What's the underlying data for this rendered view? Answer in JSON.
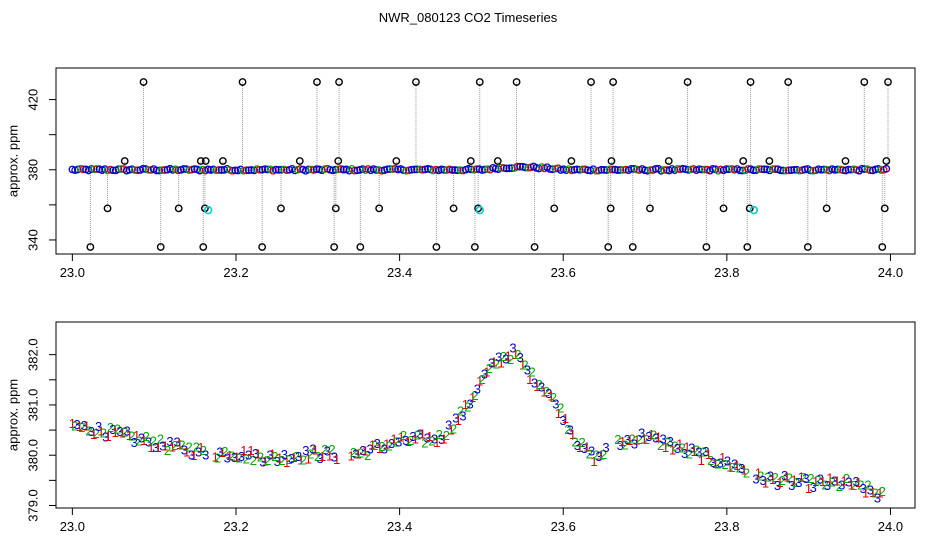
{
  "title": "NWR_080123  CO2 Timeseries",
  "chart_data": [
    {
      "type": "scatter",
      "ylabel": "approx. ppm",
      "xlim": [
        22.98,
        24.03
      ],
      "ylim": [
        332,
        438
      ],
      "xticks": [
        "23.0",
        "23.2",
        "23.4",
        "23.6",
        "23.8",
        "24.0"
      ],
      "xtick_values": [
        23.0,
        23.2,
        23.4,
        23.6,
        23.8,
        24.0
      ],
      "yticks": [
        "340",
        "380",
        "420"
      ],
      "ytick_values": [
        340,
        380,
        420
      ],
      "minor_yticks": [
        360,
        400
      ],
      "baseline_points": 300,
      "outlier_times": [
        23.022,
        23.043,
        23.064,
        23.087,
        23.108,
        23.13,
        23.157,
        23.16,
        23.162,
        23.163,
        23.184,
        23.208,
        23.232,
        23.255,
        23.278,
        23.299,
        23.32,
        23.322,
        23.325,
        23.326,
        23.352,
        23.375,
        23.396,
        23.42,
        23.445,
        23.466,
        23.487,
        23.492,
        23.496,
        23.498,
        23.52,
        23.543,
        23.565,
        23.589,
        23.61,
        23.634,
        23.655,
        23.658,
        23.659,
        23.661,
        23.685,
        23.706,
        23.729,
        23.752,
        23.775,
        23.796,
        23.82,
        23.825,
        23.828,
        23.829,
        23.852,
        23.875,
        23.899,
        23.922,
        23.945,
        23.968,
        23.99,
        23.993,
        23.995,
        23.997
      ],
      "outlier_values": [
        336,
        358,
        385,
        430,
        336,
        358,
        385,
        336,
        358,
        385,
        385,
        430,
        336,
        358,
        385,
        430,
        336,
        358,
        385,
        430,
        336,
        358,
        385,
        430,
        336,
        358,
        385,
        336,
        358,
        430,
        385,
        430,
        336,
        358,
        385,
        430,
        336,
        358,
        385,
        430,
        336,
        358,
        385,
        430,
        336,
        358,
        385,
        336,
        358,
        430,
        385,
        430,
        336,
        358,
        385,
        430,
        336,
        358,
        385,
        430
      ],
      "cyan_times": [
        23.166,
        23.498,
        23.833
      ],
      "cyan_values": [
        357,
        357,
        357
      ]
    },
    {
      "type": "scatter",
      "ylabel": "approx. ppm",
      "xlim": [
        22.98,
        24.03
      ],
      "ylim": [
        378.95,
        382.65
      ],
      "xticks": [
        "23.0",
        "23.2",
        "23.4",
        "23.6",
        "23.8",
        "24.0"
      ],
      "xtick_values": [
        23.0,
        23.2,
        23.4,
        23.6,
        23.8,
        24.0
      ],
      "yticks": [
        "379.0",
        "380.0",
        "381.0",
        "382.0"
      ],
      "ytick_values": [
        379.0,
        380.0,
        381.0,
        382.0
      ],
      "minor_yticks": [
        379.5,
        380.5,
        381.5
      ],
      "series": [
        {
          "symbol": "1",
          "color": "#dd0000"
        },
        {
          "symbol": "2",
          "color": "#00aa00"
        },
        {
          "symbol": "3",
          "color": "#0000cc"
        }
      ],
      "curve_x": [
        23.0,
        23.05,
        23.1,
        23.15,
        23.17,
        23.2,
        23.25,
        23.3,
        23.33,
        23.35,
        23.4,
        23.45,
        23.48,
        23.5,
        23.52,
        23.54,
        23.56,
        23.58,
        23.6,
        23.62,
        23.64,
        23.66,
        23.7,
        23.75,
        23.8,
        23.82,
        23.84,
        23.9,
        23.95,
        23.99
      ],
      "curve_y": [
        380.6,
        380.45,
        380.25,
        380.1,
        380.05,
        380.05,
        379.95,
        380.05,
        380.0,
        380.05,
        380.3,
        380.35,
        380.9,
        381.5,
        381.9,
        382.05,
        381.6,
        381.3,
        380.8,
        380.2,
        379.95,
        380.2,
        380.4,
        380.1,
        379.85,
        379.75,
        379.55,
        379.45,
        379.45,
        379.2
      ]
    }
  ]
}
